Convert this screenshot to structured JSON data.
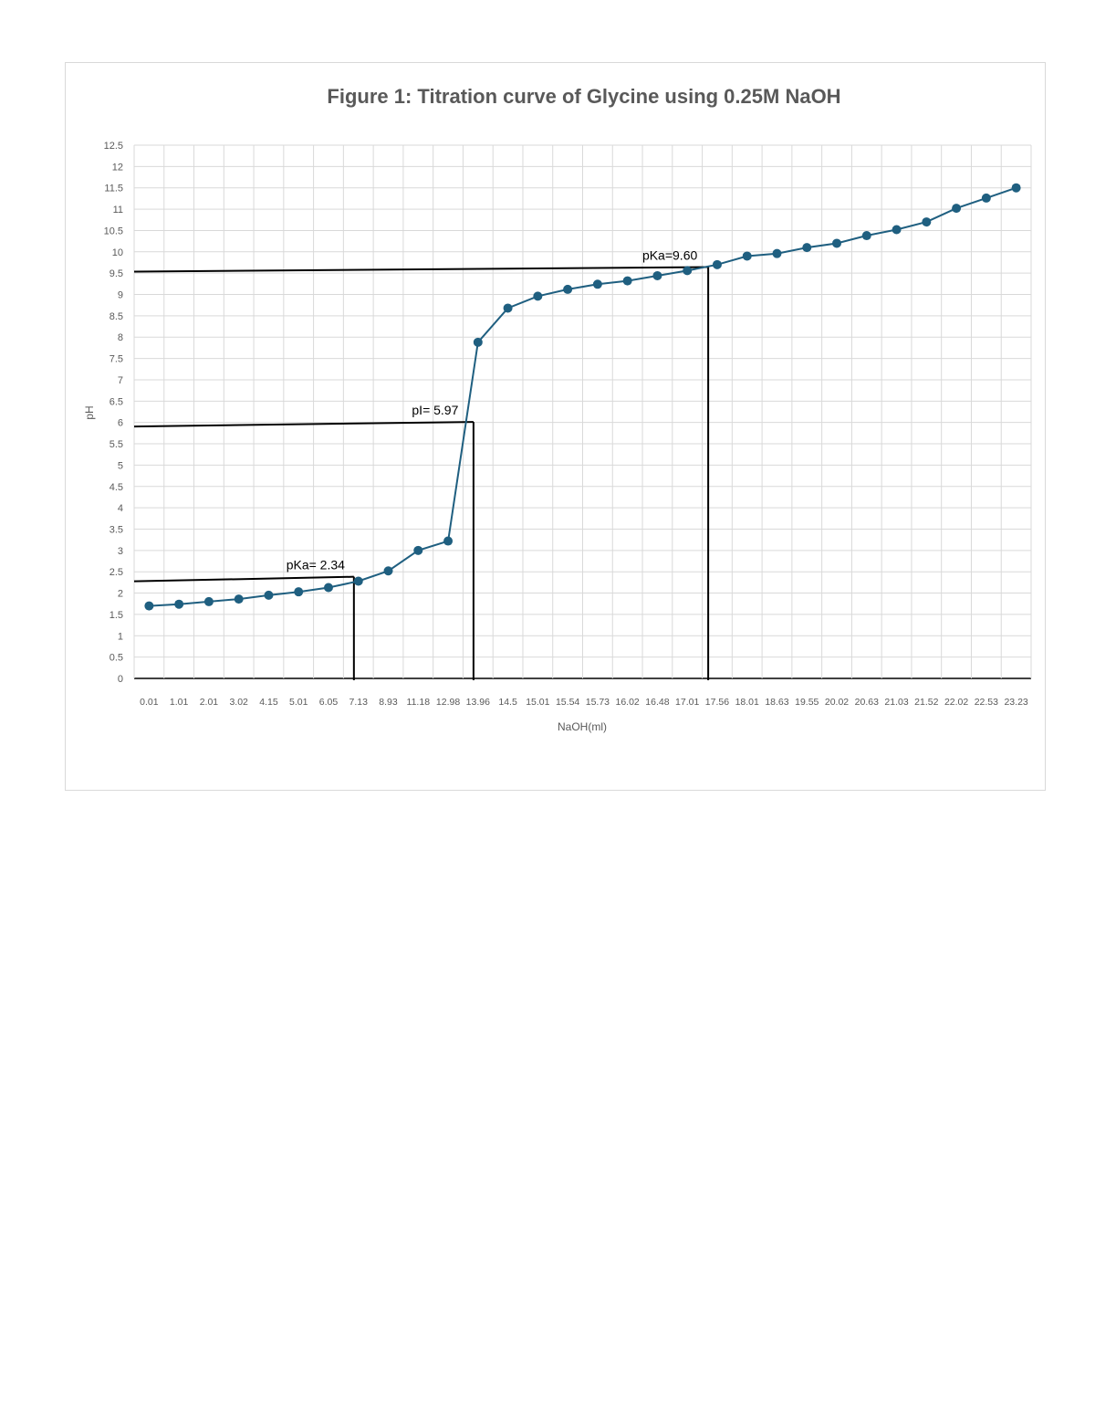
{
  "chart_data": {
    "type": "line",
    "title": "Figure 1: Titration curve of Glycine using 0.25M NaOH",
    "xlabel": "NaOH(ml)",
    "ylabel": "pH",
    "categories": [
      "0.01",
      "1.01",
      "2.01",
      "3.02",
      "4.15",
      "5.01",
      "6.05",
      "7.13",
      "8.93",
      "11.18",
      "12.98",
      "13.96",
      "14.5",
      "15.01",
      "15.54",
      "15.73",
      "16.02",
      "16.48",
      "17.01",
      "17.56",
      "18.01",
      "18.63",
      "19.55",
      "20.02",
      "20.63",
      "21.03",
      "21.52",
      "22.02",
      "22.53",
      "23.23"
    ],
    "series": [
      {
        "values": [
          1.7,
          1.74,
          1.8,
          1.86,
          1.95,
          2.03,
          2.13,
          2.28,
          2.52,
          3.0,
          3.22,
          7.88,
          8.68,
          8.96,
          9.12,
          9.24,
          9.32,
          9.44,
          9.56,
          9.7,
          9.9,
          9.96,
          10.1,
          10.2,
          10.38,
          10.52,
          10.7,
          11.02,
          11.26,
          11.5
        ],
        "color": "#1f5f80"
      }
    ],
    "ylim": [
      0,
      12.5
    ],
    "ytick_step": 0.5,
    "grid": true,
    "annotations": [
      {
        "text": "pKa= 2.34",
        "ph": 2.34
      },
      {
        "text": "pI= 5.97",
        "ph": 5.97
      },
      {
        "text": "pKa=9.60",
        "ph": 9.6
      }
    ]
  }
}
